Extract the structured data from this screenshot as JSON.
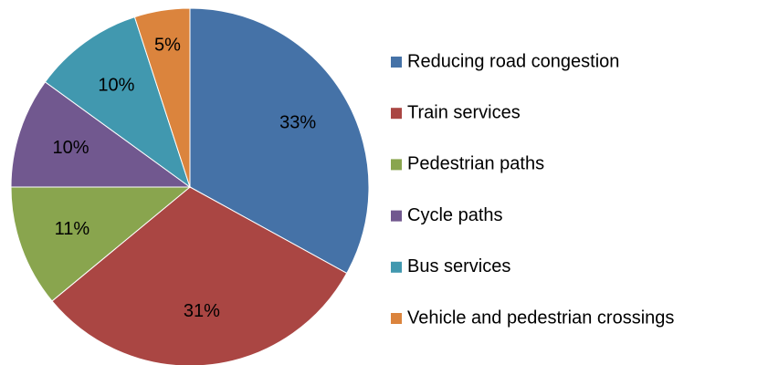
{
  "chart_data": {
    "type": "pie",
    "categories": [
      "Reducing road congestion",
      "Train services",
      "Pedestrian paths",
      "Cycle paths",
      "Bus services",
      "Vehicle and pedestrian crossings"
    ],
    "values": [
      33,
      31,
      11,
      10,
      10,
      5
    ],
    "value_labels": [
      "33%",
      "31%",
      "11%",
      "10%",
      "10%",
      "5%"
    ],
    "colors": [
      "#4572a7",
      "#aa4643",
      "#89a54e",
      "#71588f",
      "#4198af",
      "#db843d"
    ],
    "legend": "right"
  }
}
